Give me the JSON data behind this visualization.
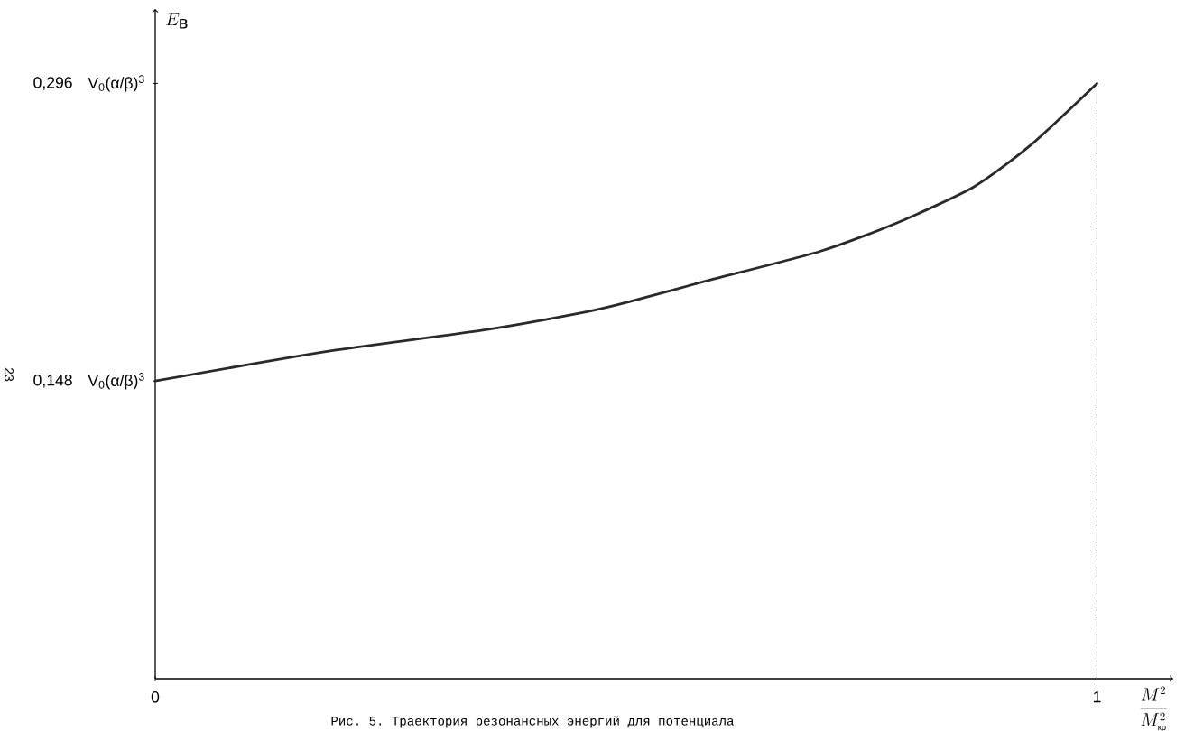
{
  "chart_data": {
    "type": "line",
    "xlabel": "\\frac{M^2}{M^2_{\\mbox{\\footnotesize кр}}}",
    "ylabel": "E_{\\mbox{в}}",
    "x": [
      0,
      0.178,
      0.351,
      0.46,
      0.505,
      0.583,
      0.706,
      0.787,
      0.869,
      0.93,
      1.0
    ],
    "series": [
      {
        "color": "#2a2a2a",
        "values": [
          0.148,
          0.1624,
          0.1735,
          0.1826,
          0.1876,
          0.1975,
          0.2125,
          0.2265,
          0.2445,
          0.2655,
          0.296
        ]
      }
    ],
    "xlim": [
      0,
      1.081
    ],
    "ylim": [
      0,
      0.333
    ],
    "xticks": [
      0,
      1
    ],
    "yticks": [
      {
        "value": 0.148,
        "label": "0,148"
      },
      {
        "value": 0.296,
        "label": "0,296"
      }
    ],
    "ref_lines": [
      {
        "axis": "x",
        "value": 1,
        "line_style": "dashed"
      }
    ],
    "marker": "none",
    "line_style": "solid",
    "annotations": [
      "Рис. 5. Траектория резонансных энергий для потенциала",
      "23",
      "V$_{0}$(α/β)$^{3}$",
      "V$_{0}$(α/β)$^{3}$"
    ]
  }
}
